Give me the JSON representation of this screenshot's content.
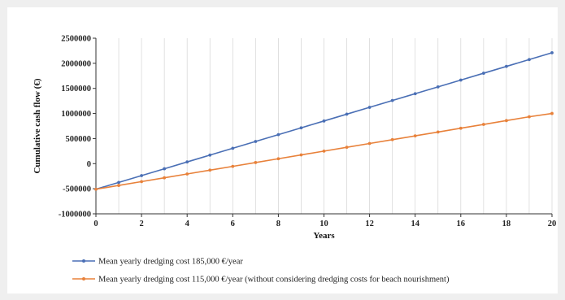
{
  "chart_data": {
    "type": "line",
    "xlabel": "Years",
    "ylabel": "Cumulative cash flow (€)",
    "xlim": [
      0,
      20
    ],
    "ylim": [
      -1000000,
      2500000
    ],
    "x_ticks": [
      "0",
      "2",
      "4",
      "6",
      "8",
      "10",
      "12",
      "14",
      "16",
      "18",
      "20"
    ],
    "y_ticks": [
      "2500000",
      "2000000",
      "1500000",
      "1000000",
      "500000",
      "0",
      "-500000",
      "-1000000"
    ],
    "grid": "vertical",
    "legend_position": "bottom",
    "x": [
      0,
      1,
      2,
      3,
      4,
      5,
      6,
      7,
      8,
      9,
      10,
      11,
      12,
      13,
      14,
      15,
      16,
      17,
      18,
      19,
      20
    ],
    "series": [
      {
        "name": "Mean yearly dredging cost 185,000 €/year",
        "color": "#4a6fb5",
        "values": [
          -510000,
          -374000,
          -238000,
          -102000,
          34000,
          170000,
          306000,
          442000,
          578000,
          714000,
          850000,
          986000,
          1122000,
          1258000,
          1394000,
          1530000,
          1666000,
          1802000,
          1938000,
          2074000,
          2210000
        ]
      },
      {
        "name": "Mean yearly dredging cost 115,000 €/year (without considering dredging costs for beach nourishment)",
        "color": "#e8813a",
        "values": [
          -510000,
          -434000,
          -358000,
          -282000,
          -206000,
          -130000,
          -54000,
          22000,
          98000,
          174000,
          250000,
          326000,
          402000,
          478000,
          554000,
          630000,
          706000,
          782000,
          858000,
          934000,
          1000000
        ]
      }
    ]
  }
}
